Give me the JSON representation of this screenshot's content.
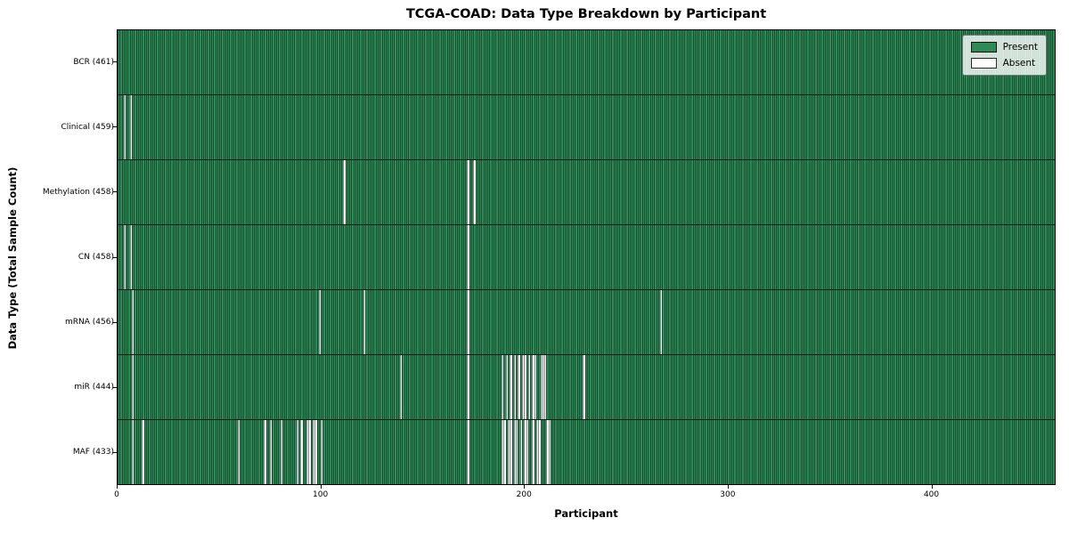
{
  "title": "TCGA-COAD: Data Type Breakdown by Participant",
  "xlabel": "Participant",
  "ylabel": "Data Type (Total Sample Count)",
  "legend": {
    "present_label": "Present",
    "absent_label": "Absent",
    "present_color": "#2e8b57",
    "absent_color": "#ffffff"
  },
  "colors": {
    "present": "#2e8b57",
    "absent": "#ffffff",
    "cell_edge": "rgba(0,22,11,0.5)",
    "plot_border": "#000000",
    "legend_background": "rgba(255,255,255,0.8)"
  },
  "chart_data": {
    "type": "heatmap",
    "title": "TCGA-COAD: Data Type Breakdown by Participant",
    "xlabel": "Participant",
    "ylabel": "Data Type (Total Sample Count)",
    "x_range": [
      0,
      461
    ],
    "x_ticks": [
      0,
      100,
      200,
      300,
      400
    ],
    "n_participants": 461,
    "legend_position": "upper right",
    "grid": false,
    "value_encoding": {
      "present": 1,
      "absent": 0
    },
    "rows": [
      {
        "name": "bcr",
        "label": "BCR (461)",
        "data_type": "BCR",
        "present_count": 461,
        "absent_participants": []
      },
      {
        "name": "clinical",
        "label": "Clinical (459)",
        "data_type": "Clinical",
        "present_count": 459,
        "absent_participants": [
          3,
          6
        ]
      },
      {
        "name": "methylation",
        "label": "Methylation (458)",
        "data_type": "Methylation",
        "present_count": 458,
        "absent_participants": [
          111,
          172,
          175
        ]
      },
      {
        "name": "cn",
        "label": "CN (458)",
        "data_type": "CN",
        "present_count": 458,
        "absent_participants": [
          3,
          6,
          172
        ]
      },
      {
        "name": "mrna",
        "label": "mRNA (456)",
        "data_type": "mRNA",
        "present_count": 456,
        "absent_participants": [
          7,
          99,
          121,
          172,
          267
        ]
      },
      {
        "name": "mir",
        "label": "miR (444)",
        "data_type": "miR",
        "present_count": 444,
        "absent_participants": [
          7,
          139,
          172,
          189,
          191,
          193,
          195,
          197,
          199,
          200,
          202,
          204,
          205,
          208,
          209,
          210,
          229
        ]
      },
      {
        "name": "maf",
        "label": "MAF (433)",
        "data_type": "MAF",
        "present_count": 433,
        "absent_participants": [
          7,
          12,
          59,
          72,
          75,
          80,
          88,
          90,
          93,
          94,
          96,
          97,
          100,
          172,
          189,
          190,
          192,
          193,
          195,
          196,
          198,
          200,
          201,
          204,
          206,
          207,
          211,
          212
        ]
      }
    ]
  }
}
